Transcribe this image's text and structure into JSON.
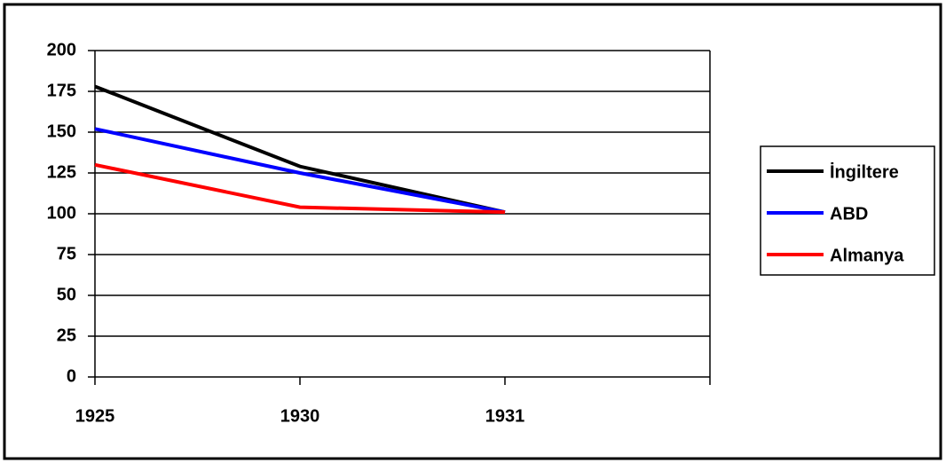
{
  "chart_data": {
    "type": "line",
    "categories": [
      "1925",
      "1930",
      "1931",
      null
    ],
    "series": [
      {
        "name": "İngiltere",
        "color": "#000000",
        "values": [
          178,
          129,
          101,
          null
        ]
      },
      {
        "name": "ABD",
        "color": "#0000ff",
        "values": [
          152,
          125,
          101,
          null
        ]
      },
      {
        "name": "Almanya",
        "color": "#ff0000",
        "values": [
          130,
          104,
          101,
          null
        ]
      }
    ],
    "ylim": [
      0,
      200
    ],
    "yticks": [
      0,
      25,
      50,
      75,
      100,
      125,
      150,
      175,
      200
    ],
    "grid": true,
    "legend": "right"
  }
}
